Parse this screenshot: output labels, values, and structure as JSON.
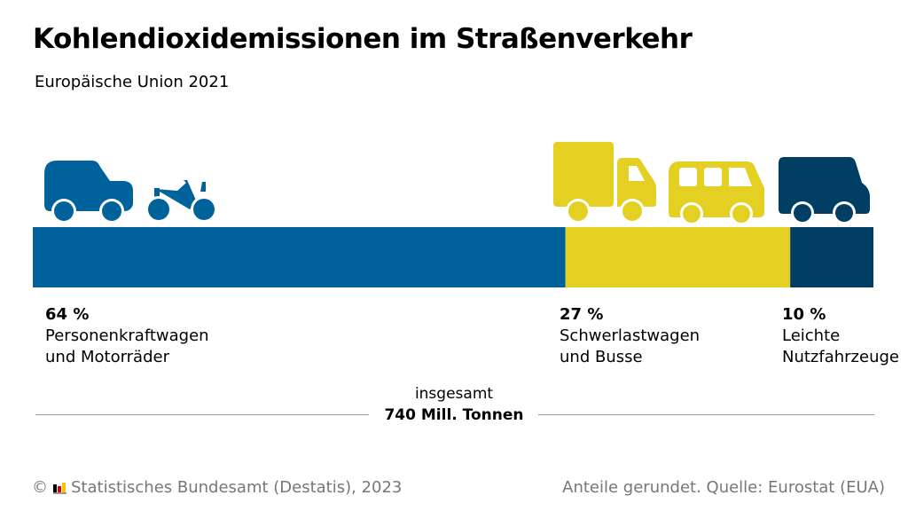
{
  "title": "Kohlendioxidemissionen im Straßenverkehr",
  "subtitle": "Europäische Union 2021",
  "chart_data": {
    "type": "bar",
    "orientation": "horizontal-stacked",
    "unit": "%",
    "categories": [
      "Personenkraftwagen und Motorräder",
      "Schwerlastwagen und Busse",
      "Leichte Nutzfahrzeuge"
    ],
    "values": [
      64,
      27,
      10
    ],
    "labels": [
      {
        "value": "64 %",
        "line1": "Personenkraftwagen",
        "line2": "und Motorräder"
      },
      {
        "value": "27 %",
        "line1": "Schwerlastwagen",
        "line2": "und Busse"
      },
      {
        "value": "10 %",
        "line1": "Leichte",
        "line2": "Nutzfahrzeuge"
      }
    ],
    "colors": [
      "#00629b",
      "#e3d023",
      "#003f63"
    ],
    "icons": [
      [
        "car-icon",
        "motorcycle-icon"
      ],
      [
        "truck-icon",
        "bus-icon"
      ],
      [
        "van-icon"
      ]
    ],
    "total_label": "insgesamt",
    "total_value": "740 Mill. Tonnen"
  },
  "footer": {
    "left": "Statistisches Bundesamt (Destatis), 2023",
    "copyright": "©",
    "right": "Anteile gerundet. Quelle: Eurostat (EUA)"
  }
}
